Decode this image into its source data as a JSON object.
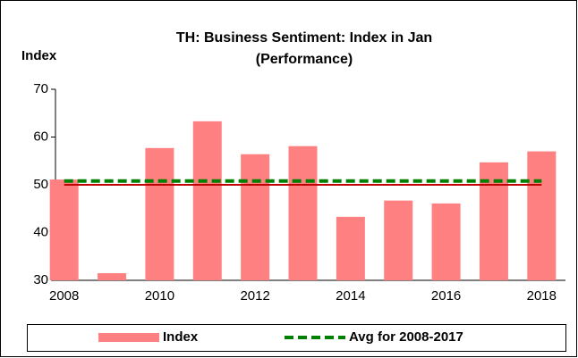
{
  "chart_data": {
    "type": "bar",
    "title": "TH: Business Sentiment: Index in Jan",
    "subtitle": "(Performance)",
    "y_label": "Index",
    "categories": [
      "2008",
      null,
      "2010",
      null,
      "2012",
      null,
      "2014",
      null,
      "2016",
      null,
      "2018"
    ],
    "series": [
      {
        "name": "Index",
        "color": "#ff8080",
        "values": [
          51.1,
          31.5,
          57.7,
          63.3,
          56.4,
          58.1,
          43.3,
          46.7,
          46.1,
          54.7,
          57.0
        ]
      },
      {
        "name": "Avg for 2008-2017",
        "color": "#008000",
        "type": "line",
        "dashed": true,
        "values": [
          50.8,
          50.8,
          50.8,
          50.8,
          50.8,
          50.8,
          50.8,
          50.8,
          50.8,
          50.8,
          50.8
        ]
      }
    ],
    "reference_line": {
      "value": 50,
      "color": "#c00000"
    },
    "ylim": [
      30,
      70
    ],
    "yticks": [
      30,
      40,
      50,
      60,
      70
    ],
    "grid": false
  }
}
